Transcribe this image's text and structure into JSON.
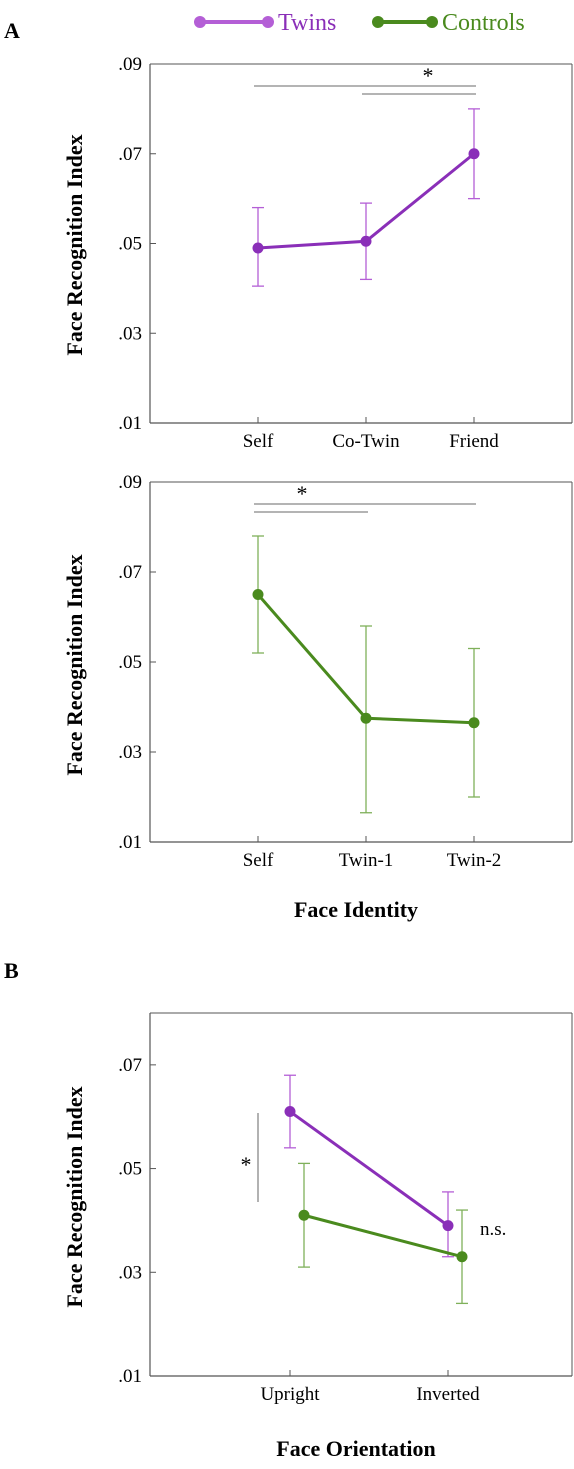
{
  "legend": {
    "entries": [
      {
        "label": "Twins",
        "color": "#8a2fb8"
      },
      {
        "label": "Controls",
        "color": "#4a8a1e"
      }
    ]
  },
  "colors": {
    "twins_light": "#b45fd6",
    "controls_light": "#7fb05a",
    "axis": "#555555",
    "sig_line": "#888888"
  },
  "chart_data": [
    {
      "type": "line",
      "panel_label": "A",
      "ylabel": "Face Recognition Index",
      "xlabel": "",
      "categories": [
        "Self",
        "Co-Twin",
        "Friend"
      ],
      "ylim": [
        0.01,
        0.09
      ],
      "yticks": [
        0.01,
        0.03,
        0.05,
        0.07,
        0.09
      ],
      "ytick_labels": [
        ".01",
        ".03",
        ".05",
        ".07",
        ".09"
      ],
      "grid": false,
      "series": [
        {
          "group": "twins",
          "values": [
            0.049,
            0.0505,
            0.07
          ],
          "err_low": [
            0.0405,
            0.042,
            0.06
          ],
          "err_high": [
            0.058,
            0.059,
            0.08
          ]
        }
      ],
      "significance": [
        {
          "from": 0,
          "to": 2,
          "label": "*"
        },
        {
          "from": 1,
          "to": 2,
          "label": ""
        }
      ]
    },
    {
      "type": "line",
      "panel_label": "",
      "ylabel": "Face Recognition Index",
      "xlabel": "Face Identity",
      "categories": [
        "Self",
        "Twin-1",
        "Twin-2"
      ],
      "ylim": [
        0.01,
        0.09
      ],
      "yticks": [
        0.01,
        0.03,
        0.05,
        0.07,
        0.09
      ],
      "ytick_labels": [
        ".01",
        ".03",
        ".05",
        ".07",
        ".09"
      ],
      "grid": false,
      "series": [
        {
          "group": "controls",
          "values": [
            0.065,
            0.0375,
            0.0365
          ],
          "err_low": [
            0.052,
            0.0165,
            0.02
          ],
          "err_high": [
            0.078,
            0.058,
            0.053
          ]
        }
      ],
      "significance": [
        {
          "from": 0,
          "to": 2,
          "label": "*"
        },
        {
          "from": 0,
          "to": 1,
          "label": ""
        }
      ]
    },
    {
      "type": "line",
      "panel_label": "B",
      "ylabel": "Face Recognition Index",
      "xlabel": "Face Orientation",
      "categories": [
        "Upright",
        "Inverted"
      ],
      "ylim": [
        0.01,
        0.08
      ],
      "yticks": [
        0.01,
        0.03,
        0.05,
        0.07
      ],
      "ytick_labels": [
        ".01",
        ".03",
        ".05",
        ".07"
      ],
      "grid": false,
      "series": [
        {
          "group": "twins",
          "values": [
            0.061,
            0.039
          ],
          "err_low": [
            0.054,
            0.033
          ],
          "err_high": [
            0.068,
            0.0455
          ]
        },
        {
          "group": "controls",
          "values": [
            0.041,
            0.033
          ],
          "err_low": [
            0.031,
            0.024
          ],
          "err_high": [
            0.051,
            0.042
          ]
        }
      ],
      "annotations": [
        {
          "label": "*",
          "at": "upright"
        },
        {
          "label": "n.s.",
          "at": "inverted"
        }
      ]
    }
  ]
}
